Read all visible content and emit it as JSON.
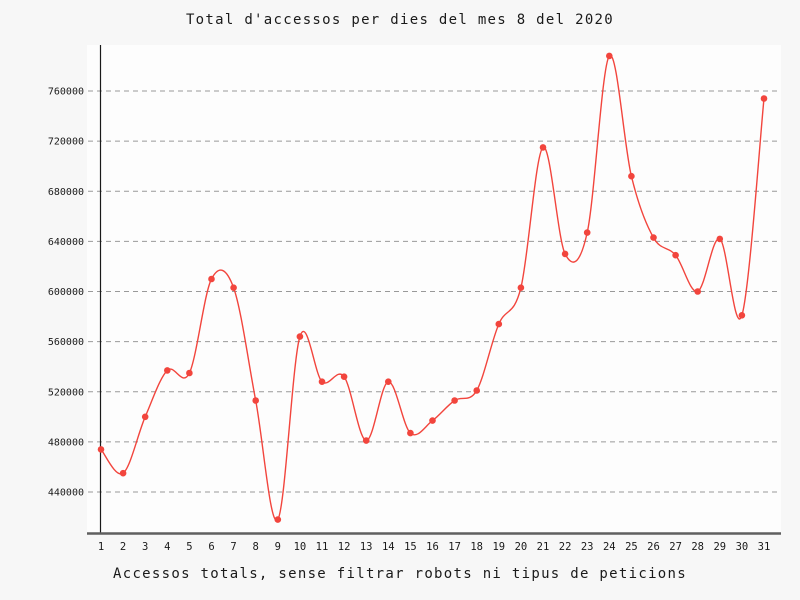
{
  "title": "Total d'accessos per dies del mes 8 del 2020",
  "subtitle": "Accessos totals, sense filtrar robots ni tipus de peticions",
  "colors": {
    "line": "#f2453d",
    "marker": "#f2453d",
    "grid": "#999999",
    "y_axis": "#1a1a1a",
    "x_axis": "#5f5f5f",
    "figure_background": "#f7f7f7",
    "plot_background": "#fdfdfd",
    "text": "#1a1a1a"
  },
  "chart_data": {
    "type": "line",
    "title": "Total d'accessos per dies del mes 8 del 2020",
    "subtitle": "Accessos totals, sense filtrar robots ni tipus de peticions",
    "xlabel": "",
    "ylabel": "",
    "x": [
      1,
      2,
      3,
      4,
      5,
      6,
      7,
      8,
      9,
      10,
      11,
      12,
      13,
      14,
      15,
      16,
      17,
      18,
      19,
      20,
      21,
      22,
      23,
      24,
      25,
      26,
      27,
      28,
      29,
      30,
      31
    ],
    "values": [
      474000,
      455000,
      500000,
      537000,
      535000,
      610000,
      603000,
      513000,
      418000,
      564000,
      528000,
      532000,
      481000,
      528000,
      487000,
      497000,
      513000,
      521000,
      574000,
      603000,
      715000,
      630000,
      647000,
      788000,
      692000,
      643000,
      629000,
      600000,
      642000,
      581000,
      754000
    ],
    "yticks": [
      440000,
      480000,
      520000,
      560000,
      600000,
      640000,
      680000,
      720000,
      760000
    ],
    "ylim": [
      407000,
      797000
    ],
    "xlim": [
      1,
      31
    ],
    "grid": "horizontal-dashed",
    "legend": "none",
    "marker": "circle",
    "smooth": true
  }
}
